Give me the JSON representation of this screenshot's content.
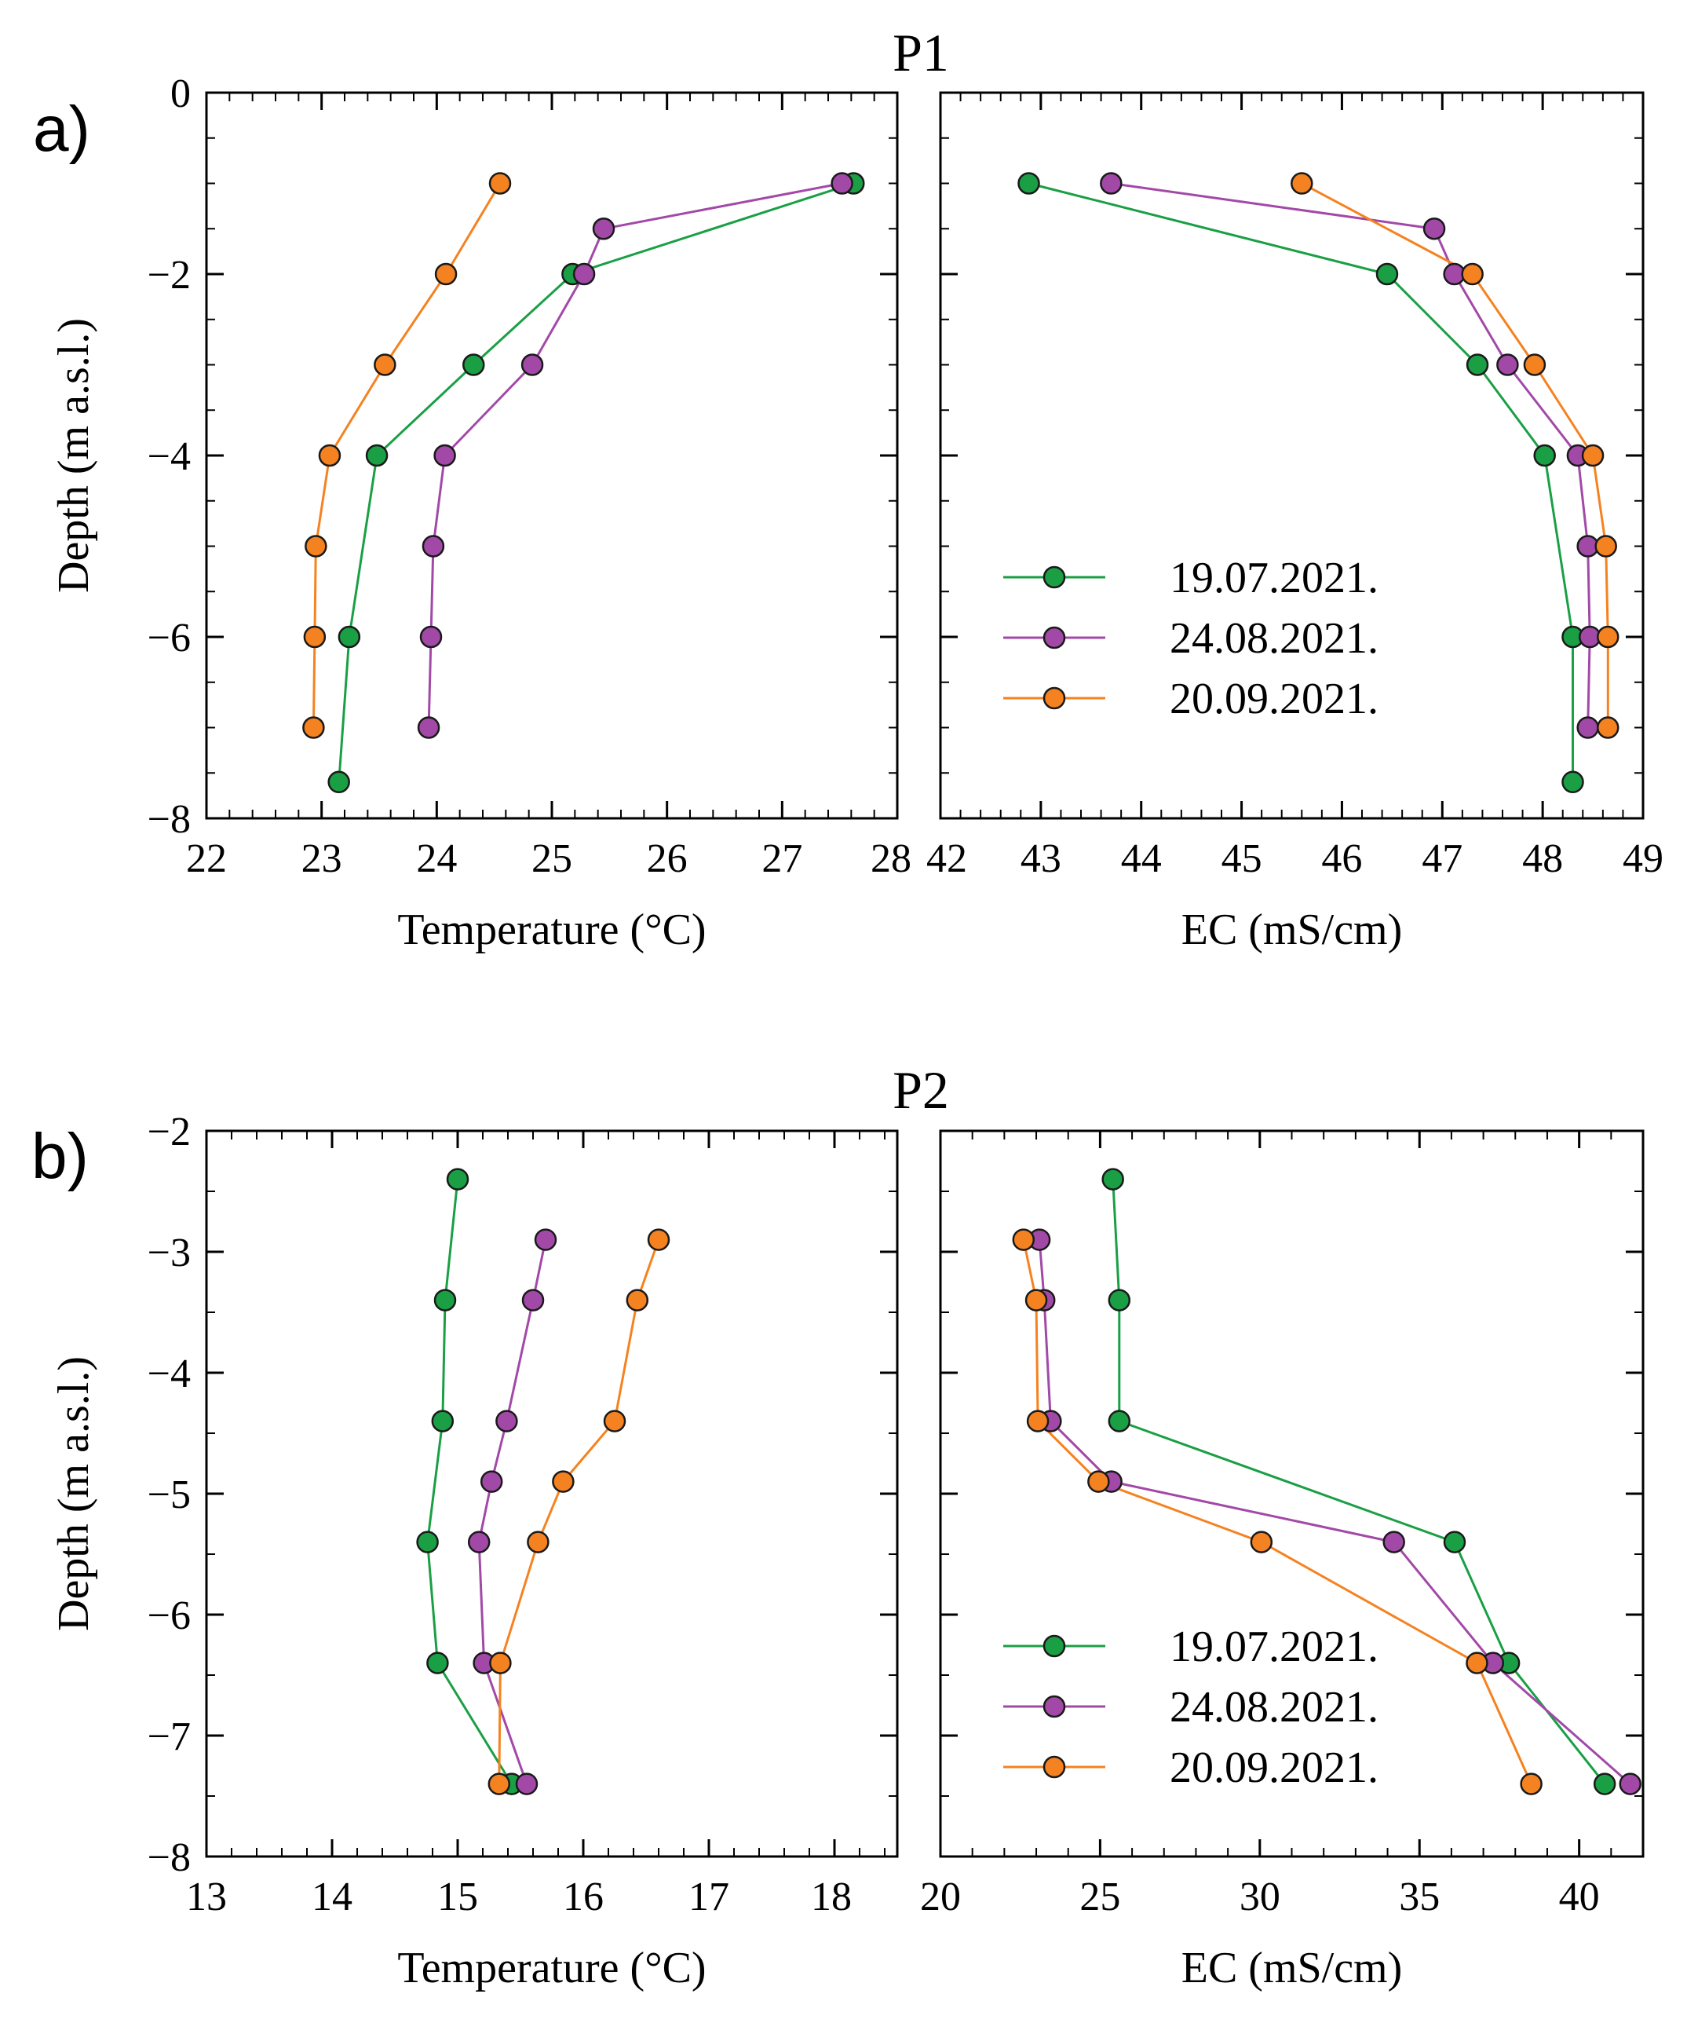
{
  "figure": {
    "panel_a_label": "a)",
    "panel_b_label": "b)",
    "series_names": [
      "19.07.2021.",
      "24.08.2021.",
      "20.09.2021."
    ],
    "series_colors": [
      "#1a9f45",
      "#a249a8",
      "#f58220"
    ]
  },
  "chart_data": [
    {
      "id": "p1-temp",
      "type": "line",
      "title": "P1",
      "panel": "a)",
      "xlabel": "Temperature (°C)",
      "ylabel": "Depth (m a.s.l.)",
      "xlim": [
        22,
        28
      ],
      "ylim": [
        -8,
        0
      ],
      "xticks": [
        22,
        23,
        24,
        25,
        26,
        27,
        28
      ],
      "xticklabels": [
        "22",
        "23",
        "24",
        "25",
        "26",
        "27",
        "28"
      ],
      "yticks": [
        0,
        -2,
        -4,
        -6,
        -8
      ],
      "yticklabels": [
        "0",
        "−2",
        "−4",
        "−6",
        "−8"
      ],
      "series": [
        {
          "name": "19.07.2021.",
          "color": "#1a9f45",
          "x": [
            27.62,
            25.18,
            24.32,
            23.48,
            23.24,
            23.15
          ],
          "y": [
            -1,
            -2,
            -3,
            -4,
            -6,
            -7.6
          ]
        },
        {
          "name": "24.08.2021.",
          "color": "#a249a8",
          "x": [
            27.52,
            25.45,
            25.28,
            24.83,
            24.07,
            23.97,
            23.95,
            23.93
          ],
          "y": [
            -1,
            -1.5,
            -2,
            -3,
            -4,
            -5,
            -6,
            -7
          ]
        },
        {
          "name": "20.09.2021.",
          "color": "#f58220",
          "x": [
            24.55,
            24.08,
            23.55,
            23.07,
            22.95,
            22.94,
            22.93
          ],
          "y": [
            -1,
            -2,
            -3,
            -4,
            -5,
            -6,
            -7
          ]
        }
      ]
    },
    {
      "id": "p1-ec",
      "type": "line",
      "xlabel": "EC (mS/cm)",
      "xlim": [
        42,
        49
      ],
      "ylim": [
        -8,
        0
      ],
      "xticks": [
        42,
        43,
        44,
        45,
        46,
        47,
        48,
        49
      ],
      "xticklabels": [
        "42",
        "43",
        "44",
        "45",
        "46",
        "47",
        "48",
        "49"
      ],
      "yticks": [
        0,
        -2,
        -4,
        -6,
        -8
      ],
      "legend": "center-left",
      "series": [
        {
          "name": "19.07.2021.",
          "color": "#1a9f45",
          "x": [
            42.88,
            46.45,
            47.35,
            48.02,
            48.3,
            48.3
          ],
          "y": [
            -1,
            -2,
            -3,
            -4,
            -6,
            -7.6
          ]
        },
        {
          "name": "24.08.2021.",
          "color": "#a249a8",
          "x": [
            43.7,
            46.92,
            47.12,
            47.65,
            48.35,
            48.45,
            48.47,
            48.45
          ],
          "y": [
            -1,
            -1.5,
            -2,
            -3,
            -4,
            -5,
            -6,
            -7
          ]
        },
        {
          "name": "20.09.2021.",
          "color": "#f58220",
          "x": [
            45.6,
            47.3,
            47.92,
            48.5,
            48.63,
            48.65,
            48.65
          ],
          "y": [
            -1,
            -2,
            -3,
            -4,
            -5,
            -6,
            -7
          ]
        }
      ]
    },
    {
      "id": "p2-temp",
      "type": "line",
      "title": "P2",
      "panel": "b)",
      "xlabel": "Temperature (°C)",
      "ylabel": "Depth (m a.s.l.)",
      "xlim": [
        13,
        18.5
      ],
      "ylim": [
        -8,
        -2
      ],
      "xticks": [
        13,
        14,
        15,
        16,
        17,
        18
      ],
      "xticklabels": [
        "13",
        "14",
        "15",
        "16",
        "17",
        "18"
      ],
      "yticks": [
        -2,
        -3,
        -4,
        -5,
        -6,
        -7,
        -8
      ],
      "yticklabels": [
        "−2",
        "−3",
        "−4",
        "−5",
        "−6",
        "−7",
        "−8"
      ],
      "series": [
        {
          "name": "19.07.2021.",
          "color": "#1a9f45",
          "x": [
            15.0,
            14.9,
            14.88,
            14.76,
            14.84,
            15.43
          ],
          "y": [
            -2.4,
            -3.4,
            -4.4,
            -5.4,
            -6.4,
            -7.4
          ]
        },
        {
          "name": "24.08.2021.",
          "color": "#a249a8",
          "x": [
            15.7,
            15.6,
            15.39,
            15.27,
            15.17,
            15.21,
            15.55
          ],
          "y": [
            -2.9,
            -3.4,
            -4.4,
            -4.9,
            -5.4,
            -6.4,
            -7.4
          ]
        },
        {
          "name": "20.09.2021.",
          "color": "#f58220",
          "x": [
            16.6,
            16.43,
            16.25,
            15.84,
            15.64,
            15.34,
            15.33
          ],
          "y": [
            -2.9,
            -3.4,
            -4.4,
            -4.9,
            -5.4,
            -6.4,
            -7.4
          ]
        }
      ]
    },
    {
      "id": "p2-ec",
      "type": "line",
      "xlabel": "EC (mS/cm)",
      "xlim": [
        20,
        42
      ],
      "ylim": [
        -8,
        -2
      ],
      "xticks": [
        20,
        25,
        30,
        35,
        40
      ],
      "xticklabels": [
        "20",
        "25",
        "30",
        "35",
        "40"
      ],
      "yticks": [
        -2,
        -3,
        -4,
        -5,
        -6,
        -7,
        -8
      ],
      "legend": "bottom-left",
      "series": [
        {
          "name": "19.07.2021.",
          "color": "#1a9f45",
          "x": [
            25.4,
            25.6,
            25.6,
            36.1,
            37.8,
            40.8
          ],
          "y": [
            -2.4,
            -3.4,
            -4.4,
            -5.4,
            -6.4,
            -7.4
          ]
        },
        {
          "name": "24.08.2021.",
          "color": "#a249a8",
          "x": [
            23.1,
            23.25,
            23.45,
            25.35,
            34.2,
            37.3,
            41.6
          ],
          "y": [
            -2.9,
            -3.4,
            -4.4,
            -4.9,
            -5.4,
            -6.4,
            -7.4
          ]
        },
        {
          "name": "20.09.2021.",
          "color": "#f58220",
          "x": [
            22.6,
            23.0,
            23.05,
            24.95,
            30.05,
            36.8,
            38.5
          ],
          "y": [
            -2.9,
            -3.4,
            -4.4,
            -4.9,
            -5.4,
            -6.4,
            -7.4
          ]
        }
      ]
    }
  ]
}
